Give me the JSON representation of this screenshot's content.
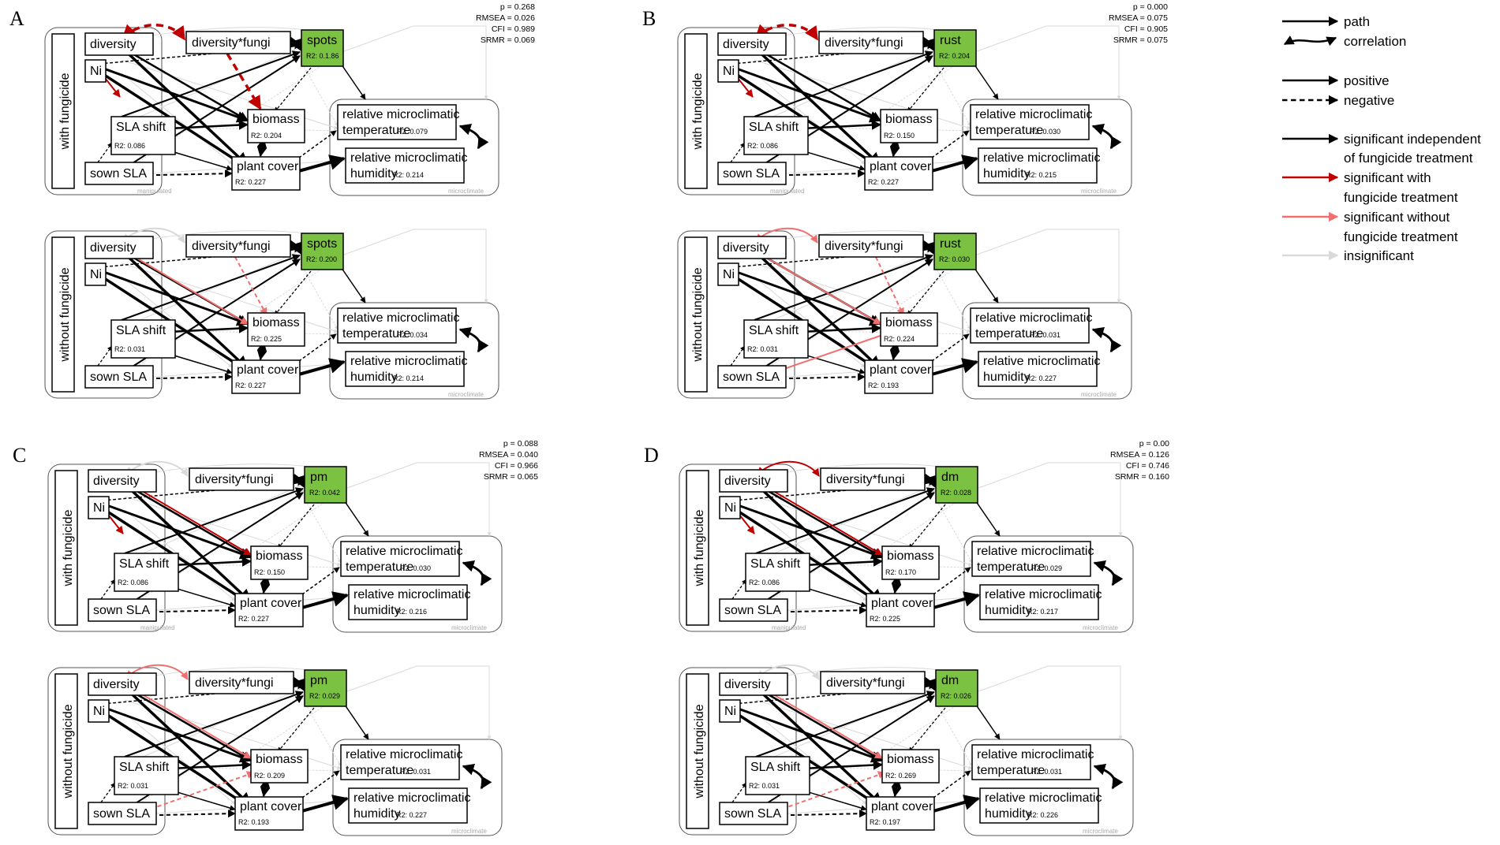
{
  "legend": {
    "path": "path",
    "correlation": "correlation",
    "positive": "positive",
    "negative": "negative",
    "sig_indep_1": "significant independent",
    "sig_indep_2": "of fungicide treatment",
    "sig_with_1": "significant with",
    "sig_with_2": "fungicide treatment",
    "sig_without_1": "significant without",
    "sig_without_2": "fungicide treatment",
    "insignificant": "insignificant"
  },
  "colors": {
    "black": "#000000",
    "red": "#c00000",
    "pink": "#f07070",
    "grey": "#d9d9d9",
    "pathogen_fill": "#7cc242",
    "without_label": "#e06666",
    "with_label": "#c00000"
  },
  "labels": {
    "diversity": "diversity",
    "ni": "Ni",
    "sla_shift": "SLA shift",
    "sown_sla": "sown SLA",
    "div_fungi": "diversity*fungi",
    "biomass": "biomass",
    "plant_cover": "plant cover",
    "rel_temp_1": "relative microclimatic",
    "rel_temp_2": "temperature",
    "rel_hum_1": "relative microclimatic",
    "rel_hum_2": "humidity",
    "with_fungicide": "with fungicide",
    "without_fungicide": "without fungicide",
    "manipulated": "manipulated",
    "microclimate": "microclimate"
  },
  "panels": [
    {
      "letter": "A",
      "pathogen": "spots",
      "stats": [
        "p = 0.268",
        "RMSEA = 0.026",
        "CFI = 0.989",
        "SRMR = 0.069"
      ],
      "with": {
        "pathogen": "R2: 0.1.86",
        "sla": "R2: 0.086",
        "biomass": "R2: 0.204",
        "cover": "R2: 0.227",
        "temp": "R2: 0.079",
        "hum": "R2: 0.214"
      },
      "without": {
        "pathogen": "R2: 0.200",
        "sla": "R2: 0.031",
        "biomass": "R2: 0.225",
        "cover": "R2: 0.227",
        "temp": "R2: 0.034",
        "hum": "R2: 0.214"
      }
    },
    {
      "letter": "B",
      "pathogen": "rust",
      "stats": [
        "p = 0.000",
        "RMSEA = 0.075",
        "CFI = 0.905",
        "SRMR = 0.075"
      ],
      "with": {
        "pathogen": "R2: 0.204",
        "sla": "R2: 0.086",
        "biomass": "R2: 0.150",
        "cover": "R2: 0.227",
        "temp": "R2: 0.030",
        "hum": "R2: 0.215"
      },
      "without": {
        "pathogen": "R2: 0.030",
        "sla": "R2: 0.031",
        "biomass": "R2: 0.224",
        "cover": "R2: 0.193",
        "temp": "R2: 0.031",
        "hum": "R2: 0.227"
      }
    },
    {
      "letter": "C",
      "pathogen": "pm",
      "stats": [
        "p = 0.088",
        "RMSEA = 0.040",
        "CFI = 0.966",
        "SRMR = 0.065"
      ],
      "with": {
        "pathogen": "R2: 0.042",
        "sla": "R2: 0.086",
        "biomass": "R2: 0.150",
        "cover": "R2: 0.227",
        "temp": "R2: 0.030",
        "hum": "R2: 0.216"
      },
      "without": {
        "pathogen": "R2: 0.029",
        "sla": "R2: 0.031",
        "biomass": "R2: 0.209",
        "cover": "R2: 0.193",
        "temp": "R2: 0.031",
        "hum": "R2: 0.227"
      }
    },
    {
      "letter": "D",
      "pathogen": "dm",
      "stats": [
        "p = 0.00",
        "RMSEA = 0.126",
        "CFI = 0.746",
        "SRMR = 0.160"
      ],
      "with": {
        "pathogen": "R2: 0.028",
        "sla": "R2: 0.086",
        "biomass": "R2: 0.170",
        "cover": "R2: 0.225",
        "temp": "R2: 0.029",
        "hum": "R2: 0.217"
      },
      "without": {
        "pathogen": "R2: 0.026",
        "sla": "R2: 0.031",
        "biomass": "R2: 0.269",
        "cover": "R2: 0.197",
        "temp": "R2: 0.031",
        "hum": "R2: 0.226"
      }
    }
  ]
}
